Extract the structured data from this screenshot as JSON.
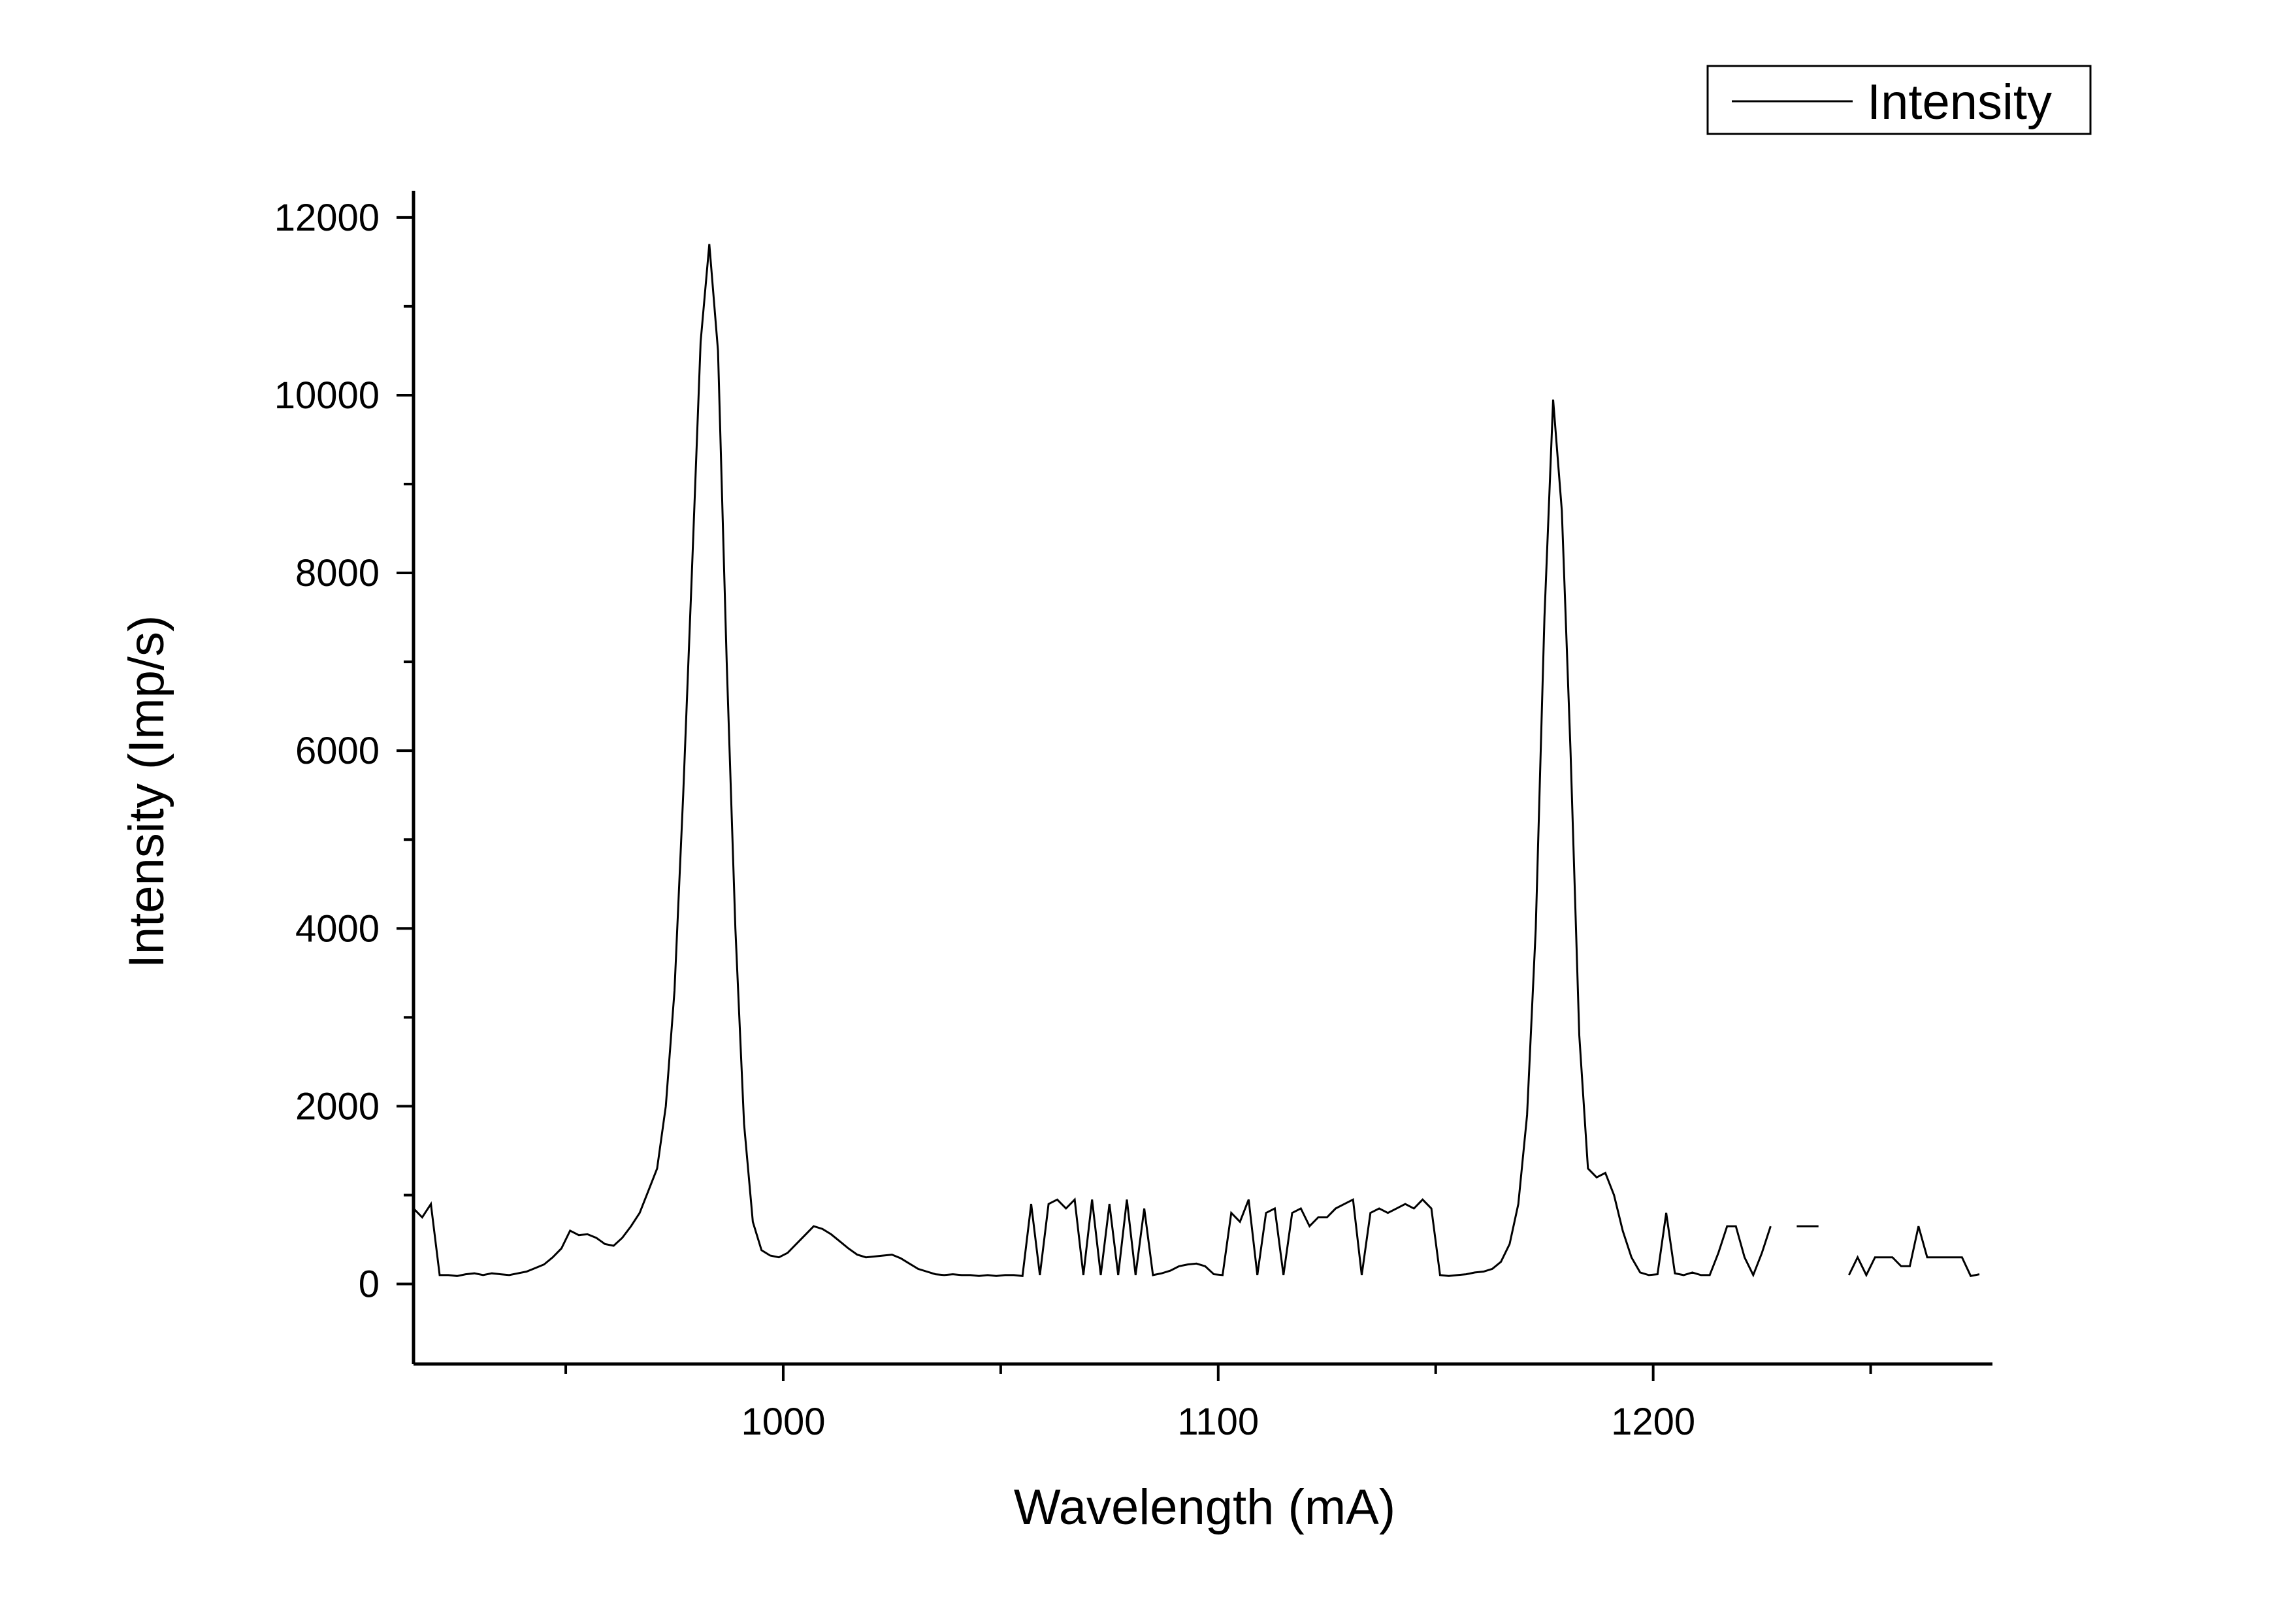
{
  "chart_data": {
    "type": "line",
    "title": "",
    "xlabel": "Wavelength (mA)",
    "ylabel": "Intensity (Imp/s)",
    "xlim": [
      915,
      1278
    ],
    "ylim": [
      -900,
      12300
    ],
    "x_ticks": [
      1000,
      1100,
      1200
    ],
    "x_minor_ticks": [
      950,
      1050,
      1150,
      1250
    ],
    "y_ticks": [
      0,
      2000,
      4000,
      6000,
      8000,
      10000,
      12000
    ],
    "y_minor_ticks": [
      1000,
      3000,
      5000,
      7000,
      9000,
      11000
    ],
    "x_tick_labels": [
      "1000",
      "1100",
      "1200"
    ],
    "y_tick_labels": [
      "0",
      "2000",
      "4000",
      "6000",
      "8000",
      "10000",
      "12000"
    ],
    "legend": {
      "position": "top-right",
      "entries": [
        "Intensity"
      ]
    },
    "grid": false,
    "line_color": "#000000",
    "series": [
      {
        "name": "Intensity",
        "points": [
          [
            915,
            850
          ],
          [
            917,
            750
          ],
          [
            919,
            900
          ],
          [
            921,
            100
          ],
          [
            923,
            100
          ],
          [
            925,
            90
          ],
          [
            927,
            110
          ],
          [
            929,
            120
          ],
          [
            931,
            100
          ],
          [
            933,
            120
          ],
          [
            935,
            110
          ],
          [
            937,
            100
          ],
          [
            939,
            120
          ],
          [
            941,
            140
          ],
          [
            943,
            180
          ],
          [
            945,
            220
          ],
          [
            947,
            300
          ],
          [
            949,
            400
          ],
          [
            951,
            600
          ],
          [
            953,
            550
          ],
          [
            955,
            560
          ],
          [
            957,
            520
          ],
          [
            959,
            450
          ],
          [
            961,
            430
          ],
          [
            963,
            520
          ],
          [
            965,
            650
          ],
          [
            967,
            800
          ],
          [
            969,
            1050
          ],
          [
            971,
            1300
          ],
          [
            973,
            2000
          ],
          [
            975,
            3300
          ],
          [
            977,
            5500
          ],
          [
            979,
            8000
          ],
          [
            981,
            10600
          ],
          [
            983,
            11700
          ],
          [
            985,
            10500
          ],
          [
            987,
            7000
          ],
          [
            989,
            4000
          ],
          [
            991,
            1800
          ],
          [
            993,
            700
          ],
          [
            995,
            380
          ],
          [
            997,
            320
          ],
          [
            999,
            300
          ],
          [
            1001,
            350
          ],
          [
            1003,
            450
          ],
          [
            1005,
            550
          ],
          [
            1007,
            650
          ],
          [
            1009,
            620
          ],
          [
            1011,
            560
          ],
          [
            1013,
            480
          ],
          [
            1015,
            400
          ],
          [
            1017,
            330
          ],
          [
            1019,
            300
          ],
          [
            1021,
            310
          ],
          [
            1023,
            320
          ],
          [
            1025,
            330
          ],
          [
            1027,
            290
          ],
          [
            1029,
            230
          ],
          [
            1031,
            170
          ],
          [
            1033,
            140
          ],
          [
            1035,
            110
          ],
          [
            1037,
            100
          ],
          [
            1039,
            110
          ],
          [
            1041,
            100
          ],
          [
            1043,
            100
          ],
          [
            1045,
            90
          ],
          [
            1047,
            100
          ],
          [
            1049,
            90
          ],
          [
            1051,
            100
          ],
          [
            1053,
            100
          ],
          [
            1055,
            90
          ],
          [
            1057,
            900
          ],
          [
            1059,
            100
          ],
          [
            1061,
            900
          ],
          [
            1063,
            950
          ],
          [
            1065,
            850
          ],
          [
            1067,
            950
          ],
          [
            1069,
            100
          ],
          [
            1071,
            950
          ],
          [
            1073,
            100
          ],
          [
            1075,
            900
          ],
          [
            1077,
            100
          ],
          [
            1079,
            950
          ],
          [
            1081,
            100
          ],
          [
            1083,
            850
          ],
          [
            1085,
            100
          ],
          [
            1087,
            120
          ],
          [
            1089,
            150
          ],
          [
            1091,
            200
          ],
          [
            1093,
            220
          ],
          [
            1095,
            230
          ],
          [
            1097,
            200
          ],
          [
            1099,
            110
          ],
          [
            1101,
            100
          ],
          [
            1103,
            800
          ],
          [
            1105,
            700
          ],
          [
            1107,
            950
          ],
          [
            1109,
            100
          ],
          [
            1111,
            800
          ],
          [
            1113,
            850
          ],
          [
            1115,
            100
          ],
          [
            1117,
            800
          ],
          [
            1119,
            850
          ],
          [
            1121,
            650
          ],
          [
            1123,
            750
          ],
          [
            1125,
            750
          ],
          [
            1127,
            850
          ],
          [
            1129,
            900
          ],
          [
            1131,
            950
          ],
          [
            1133,
            100
          ],
          [
            1135,
            800
          ],
          [
            1137,
            850
          ],
          [
            1139,
            800
          ],
          [
            1141,
            850
          ],
          [
            1143,
            900
          ],
          [
            1145,
            850
          ],
          [
            1147,
            950
          ],
          [
            1149,
            850
          ],
          [
            1151,
            100
          ],
          [
            1153,
            90
          ],
          [
            1155,
            100
          ],
          [
            1157,
            110
          ],
          [
            1159,
            130
          ],
          [
            1161,
            140
          ],
          [
            1163,
            170
          ],
          [
            1165,
            250
          ],
          [
            1167,
            450
          ],
          [
            1169,
            900
          ],
          [
            1171,
            1900
          ],
          [
            1173,
            4000
          ],
          [
            1175,
            7500
          ],
          [
            1177,
            9950
          ],
          [
            1179,
            8700
          ],
          [
            1181,
            6000
          ],
          [
            1183,
            2800
          ],
          [
            1185,
            1300
          ],
          [
            1187,
            1200
          ],
          [
            1189,
            1250
          ],
          [
            1191,
            1000
          ],
          [
            1193,
            600
          ],
          [
            1195,
            300
          ],
          [
            1197,
            130
          ],
          [
            1199,
            100
          ],
          [
            1201,
            110
          ],
          [
            1203,
            800
          ],
          [
            1205,
            120
          ],
          [
            1207,
            100
          ],
          [
            1209,
            130
          ],
          [
            1211,
            100
          ],
          [
            1213,
            100
          ],
          [
            1215,
            350
          ],
          [
            1217,
            650
          ],
          [
            1219,
            650
          ],
          [
            1221,
            300
          ],
          [
            1223,
            100
          ],
          [
            1225,
            350
          ],
          [
            1227,
            650
          ],
          null,
          [
            1233,
            650
          ],
          [
            1238,
            650
          ],
          null,
          [
            1245,
            100
          ],
          [
            1247,
            300
          ],
          [
            1249,
            100
          ],
          [
            1251,
            300
          ],
          [
            1253,
            300
          ],
          [
            1255,
            300
          ],
          [
            1257,
            200
          ],
          [
            1259,
            200
          ],
          [
            1261,
            650
          ],
          [
            1263,
            300
          ],
          [
            1265,
            300
          ],
          [
            1267,
            300
          ],
          [
            1269,
            300
          ],
          [
            1271,
            300
          ],
          [
            1273,
            90
          ],
          [
            1275,
            110
          ]
        ]
      }
    ]
  }
}
